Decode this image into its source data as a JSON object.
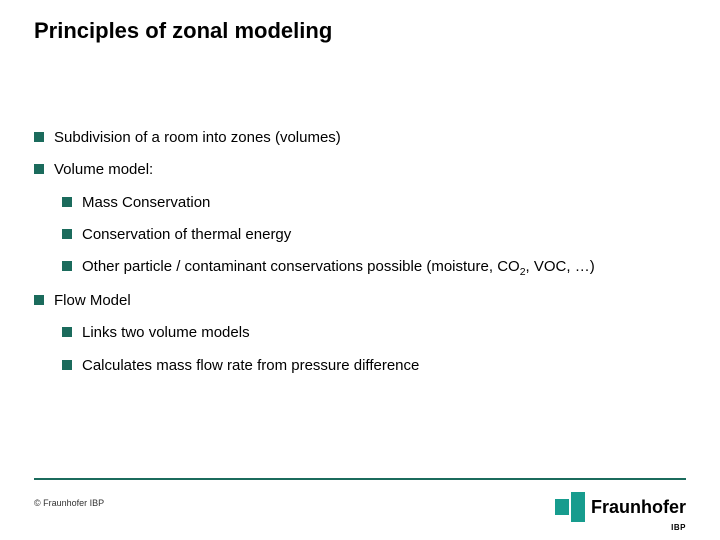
{
  "title": "Principles of zonal modeling",
  "bullets": {
    "b1": "Subdivision of a room into zones (volumes)",
    "b2": "Volume model:",
    "b2_1": "Mass Conservation",
    "b2_2": "Conservation of thermal energy",
    "b2_3_pre": "Other particle / contaminant conservations possible (moisture, CO",
    "b2_3_sub": "2",
    "b2_3_post": ", VOC, …)",
    "b3": "Flow Model",
    "b3_1": "Links two volume models",
    "b3_2": "Calculates mass flow rate from pressure difference"
  },
  "footer": {
    "copyright": "© Fraunhofer IBP",
    "logo_text": "Fraunhofer",
    "logo_sub": "IBP"
  },
  "style": {
    "accent_color": "#1b6b5c",
    "logo_color": "#179c8e",
    "bg_color": "#ffffff",
    "title_fontsize": 22,
    "body_fontsize": 15,
    "bullet_size": 10
  }
}
